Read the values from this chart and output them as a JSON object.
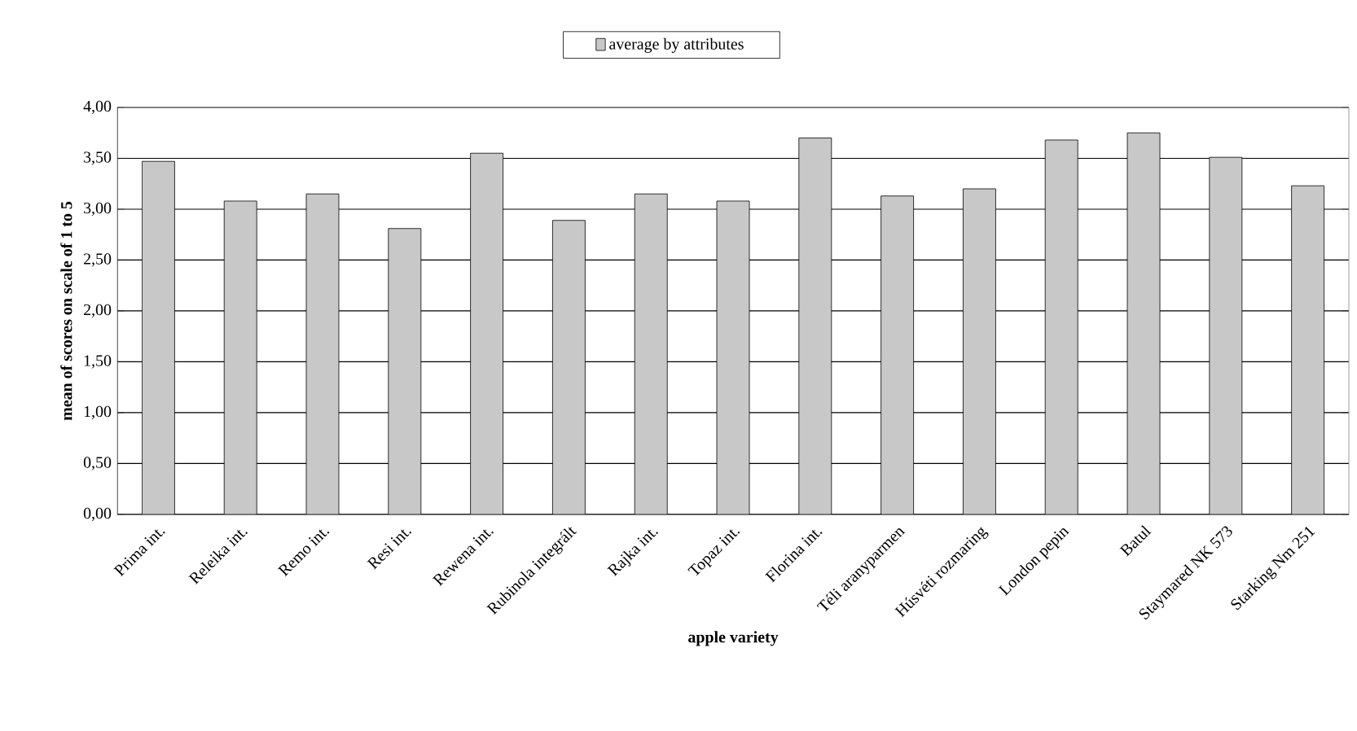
{
  "chart_data": {
    "type": "bar",
    "xlabel": "apple variety",
    "ylabel": "mean of scores on scale of 1 to 5",
    "categories": [
      "Prima int.",
      "Releika int.",
      "Remo int.",
      "Resi int.",
      "Rewena int.",
      "Rubinola integrált",
      "Rajka int.",
      "Topaz int.",
      "Florina int.",
      "Téli aranyparmen",
      "Húsvéti rozmaring",
      "London pepin",
      "Batul",
      "Staymared NK 573",
      "Starking Nm 251"
    ],
    "series": [
      {
        "name": "average by attributes",
        "color": "#c8c8c8",
        "values": [
          3.47,
          3.08,
          3.15,
          2.81,
          3.55,
          2.89,
          3.15,
          3.08,
          3.7,
          3.13,
          3.2,
          3.68,
          3.75,
          3.51,
          3.23
        ]
      }
    ],
    "ylim": [
      0,
      4
    ],
    "yticks": [
      {
        "value": 0,
        "label": "0,00"
      },
      {
        "value": 0.5,
        "label": "0,50"
      },
      {
        "value": 1,
        "label": "1,00"
      },
      {
        "value": 1.5,
        "label": "1,50"
      },
      {
        "value": 2,
        "label": "2,00"
      },
      {
        "value": 2.5,
        "label": "2,50"
      },
      {
        "value": 3,
        "label": "3,00"
      },
      {
        "value": 3.5,
        "label": "3,50"
      },
      {
        "value": 4,
        "label": "4,00"
      }
    ],
    "grid": "y",
    "legend": "top"
  }
}
